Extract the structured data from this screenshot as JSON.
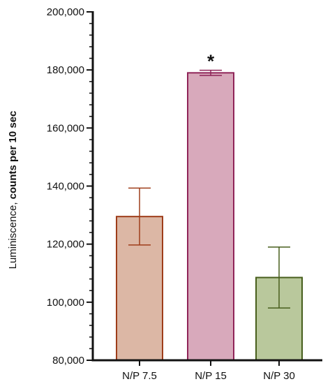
{
  "chart_data": {
    "type": "bar",
    "categories": [
      "N/P 7.5",
      "N/P 15",
      "N/P 30"
    ],
    "values": [
      129500,
      179000,
      108500
    ],
    "errors": [
      9800,
      900,
      10500
    ],
    "ylabel_prefix": "Luminiscence, ",
    "ylabel_bold": "counts per 10 sec",
    "xlabel": "",
    "ylim": [
      80000,
      200000
    ],
    "yticks": [
      80000,
      100000,
      120000,
      140000,
      160000,
      180000,
      200000
    ],
    "ytick_labels": [
      "80,000",
      "100,000",
      "120,000",
      "140,000",
      "160,000",
      "180,000",
      "200,000"
    ],
    "grid": false,
    "annotations": [
      {
        "category": "N/P 15",
        "text": "*"
      }
    ],
    "colors": {
      "fill": [
        "#dcb7a5",
        "#d8a9bb",
        "#b9c89c"
      ],
      "stroke": [
        "#9e3d1a",
        "#8f2458",
        "#475e1c"
      ],
      "axis": "#111111"
    }
  }
}
